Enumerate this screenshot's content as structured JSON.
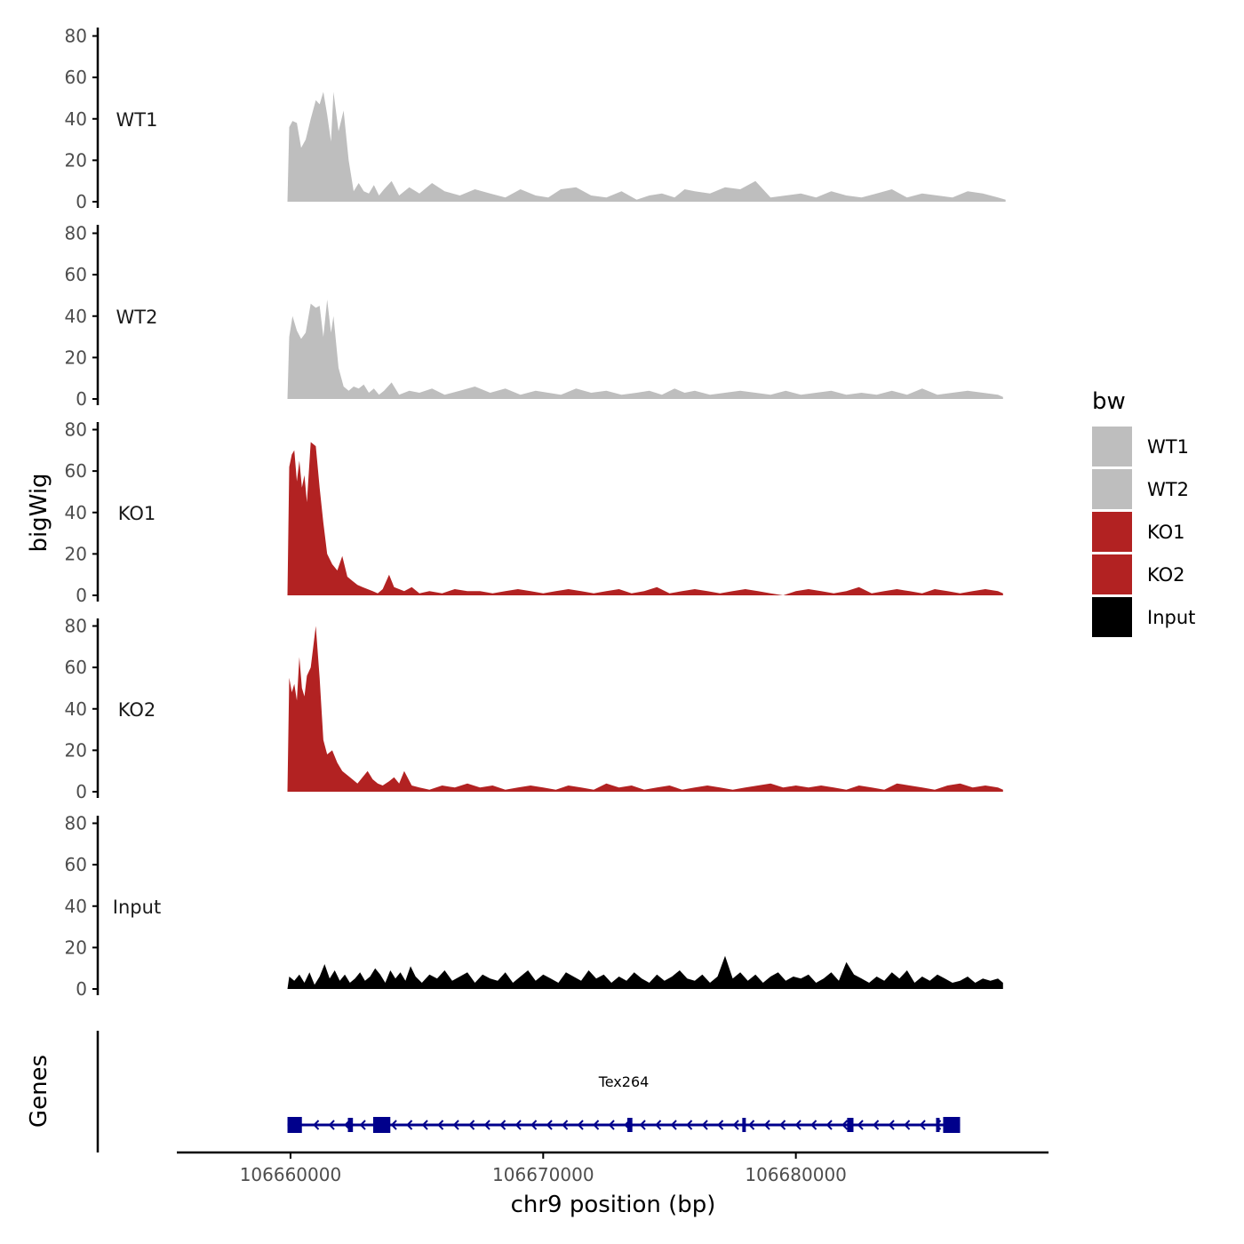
{
  "chart_data": {
    "type": "area",
    "ylabel": "bigWig",
    "xlabel": "chr9 position (bp)",
    "xlim": [
      106655500,
      106690000
    ],
    "ylim": [
      0,
      80
    ],
    "y_ticks": [
      0,
      20,
      40,
      60,
      80
    ],
    "x_ticks": [
      106660000,
      106670000,
      106680000
    ],
    "x_tick_labels": [
      "106660000",
      "106670000",
      "106680000"
    ],
    "genes_label": "Genes",
    "legend": {
      "title": "bw",
      "position": "right",
      "entries": [
        {
          "label": "WT1",
          "color": "#bebebe"
        },
        {
          "label": "WT2",
          "color": "#bebebe"
        },
        {
          "label": "KO1",
          "color": "#b22222"
        },
        {
          "label": "KO2",
          "color": "#b22222"
        },
        {
          "label": "Input",
          "color": "#000000"
        }
      ]
    },
    "tracks": [
      {
        "name": "WT1",
        "color": "#bebebe",
        "x": [
          106659880,
          106659950,
          106660080,
          106660250,
          106660420,
          106660600,
          106660800,
          106661000,
          106661150,
          106661300,
          106661450,
          106661600,
          106661700,
          106661900,
          106662100,
          106662300,
          106662500,
          106662700,
          106662900,
          106663100,
          106663300,
          106663500,
          106663700,
          106664000,
          106664300,
          106664700,
          106665100,
          106665600,
          106666100,
          106666700,
          106667300,
          106667900,
          106668500,
          106669100,
          106669700,
          106670200,
          106670700,
          106671300,
          106671900,
          106672500,
          106673100,
          106673700,
          106674200,
          106674700,
          106675200,
          106675600,
          106676000,
          106676600,
          106677200,
          106677800,
          106678400,
          106679000,
          106679600,
          106680200,
          106680800,
          106681400,
          106682000,
          106682600,
          106683200,
          106683800,
          106684400,
          106685000,
          106685600,
          106686200,
          106686800,
          106687400,
          106688000,
          106688300
        ],
        "values": [
          0,
          36,
          39,
          38,
          26,
          30,
          40,
          49,
          47,
          53,
          42,
          29,
          53,
          34,
          44,
          20,
          5,
          9,
          5,
          4,
          8,
          3,
          6,
          10,
          3,
          7,
          4,
          9,
          5,
          3,
          6,
          4,
          2,
          6,
          3,
          2,
          6,
          7,
          3,
          2,
          5,
          1,
          3,
          4,
          2,
          6,
          5,
          4,
          7,
          6,
          10,
          2,
          3,
          4,
          2,
          5,
          3,
          2,
          4,
          6,
          2,
          4,
          3,
          2,
          5,
          4,
          2,
          1
        ]
      },
      {
        "name": "WT2",
        "color": "#bebebe",
        "x": [
          106659880,
          106659950,
          106660080,
          106660250,
          106660420,
          106660600,
          106660800,
          106661000,
          106661150,
          106661300,
          106661450,
          106661600,
          106661700,
          106661900,
          106662100,
          106662300,
          106662500,
          106662700,
          106662900,
          106663100,
          106663300,
          106663500,
          106663700,
          106664000,
          106664300,
          106664700,
          106665100,
          106665600,
          106666100,
          106666700,
          106667300,
          106667900,
          106668500,
          106669100,
          106669700,
          106670200,
          106670700,
          106671300,
          106671900,
          106672500,
          106673100,
          106673700,
          106674200,
          106674700,
          106675200,
          106675600,
          106676000,
          106676600,
          106677200,
          106677800,
          106678400,
          106679000,
          106679600,
          106680200,
          106680800,
          106681400,
          106682000,
          106682600,
          106683200,
          106683800,
          106684400,
          106685000,
          106685600,
          106686200,
          106686800,
          106687400,
          106688000,
          106688200
        ],
        "values": [
          0,
          30,
          40,
          33,
          29,
          32,
          46,
          44,
          45,
          30,
          48,
          32,
          40,
          15,
          6,
          4,
          6,
          5,
          7,
          3,
          5,
          2,
          4,
          8,
          2,
          4,
          3,
          5,
          2,
          4,
          6,
          3,
          5,
          2,
          4,
          3,
          2,
          5,
          3,
          4,
          2,
          3,
          4,
          2,
          5,
          3,
          4,
          2,
          3,
          4,
          3,
          2,
          4,
          2,
          3,
          4,
          2,
          3,
          2,
          4,
          2,
          5,
          2,
          3,
          4,
          3,
          2,
          1
        ]
      },
      {
        "name": "KO1",
        "color": "#b22222",
        "x": [
          106659880,
          106659950,
          106660050,
          106660150,
          106660250,
          106660350,
          106660450,
          106660550,
          106660650,
          106660800,
          106661000,
          106661150,
          106661300,
          106661450,
          106661650,
          106661850,
          106662050,
          106662250,
          106662450,
          106662650,
          106662850,
          106663050,
          106663250,
          106663450,
          106663650,
          106663900,
          106664100,
          106664300,
          106664500,
          106664800,
          106665100,
          106665500,
          106666000,
          106666500,
          106667000,
          106667500,
          106668000,
          106668500,
          106669000,
          106669500,
          106670000,
          106670500,
          106671000,
          106671500,
          106672000,
          106672500,
          106673000,
          106673500,
          106674000,
          106674500,
          106675000,
          106675500,
          106676000,
          106676500,
          106677000,
          106677500,
          106678000,
          106678500,
          106679000,
          106679500,
          106680000,
          106680500,
          106681000,
          106681500,
          106682000,
          106682500,
          106683000,
          106683500,
          106684000,
          106684500,
          106685000,
          106685500,
          106686000,
          106686500,
          106687000,
          106687500,
          106688000,
          106688200
        ],
        "values": [
          0,
          62,
          68,
          70,
          55,
          65,
          52,
          58,
          45,
          74,
          72,
          52,
          35,
          20,
          15,
          12,
          19,
          9,
          7,
          5,
          4,
          3,
          2,
          1,
          3,
          10,
          4,
          3,
          2,
          4,
          1,
          2,
          1,
          3,
          2,
          2,
          1,
          2,
          3,
          2,
          1,
          2,
          3,
          2,
          1,
          2,
          3,
          1,
          2,
          4,
          1,
          2,
          3,
          2,
          1,
          2,
          3,
          2,
          1,
          0,
          2,
          3,
          2,
          1,
          2,
          4,
          1,
          2,
          3,
          2,
          1,
          3,
          2,
          1,
          2,
          3,
          2,
          1
        ]
      },
      {
        "name": "KO2",
        "color": "#b22222",
        "x": [
          106659880,
          106659950,
          106660050,
          106660150,
          106660250,
          106660350,
          106660450,
          106660550,
          106660650,
          106660800,
          106661000,
          106661150,
          106661300,
          106661450,
          106661650,
          106661850,
          106662050,
          106662250,
          106662450,
          106662650,
          106662850,
          106663050,
          106663250,
          106663450,
          106663650,
          106663900,
          106664100,
          106664300,
          106664500,
          106664800,
          106665100,
          106665500,
          106666000,
          106666500,
          106667000,
          106667500,
          106668000,
          106668500,
          106669000,
          106669500,
          106670000,
          106670500,
          106671000,
          106671500,
          106672000,
          106672500,
          106673000,
          106673500,
          106674000,
          106674500,
          106675000,
          106675500,
          106676000,
          106676500,
          106677000,
          106677500,
          106678000,
          106678500,
          106679000,
          106679500,
          106680000,
          106680500,
          106681000,
          106681500,
          106682000,
          106682500,
          106683000,
          106683500,
          106684000,
          106684500,
          106685000,
          106685500,
          106686000,
          106686500,
          106687000,
          106687500,
          106688000,
          106688200
        ],
        "values": [
          0,
          55,
          48,
          52,
          44,
          65,
          50,
          46,
          56,
          60,
          80,
          55,
          25,
          18,
          20,
          14,
          10,
          8,
          6,
          4,
          7,
          10,
          6,
          4,
          3,
          5,
          7,
          4,
          10,
          3,
          2,
          1,
          3,
          2,
          4,
          2,
          3,
          1,
          2,
          3,
          2,
          1,
          3,
          2,
          1,
          4,
          2,
          3,
          1,
          2,
          3,
          1,
          2,
          3,
          2,
          1,
          2,
          3,
          4,
          2,
          3,
          2,
          3,
          2,
          1,
          3,
          2,
          1,
          4,
          3,
          2,
          1,
          3,
          4,
          2,
          3,
          2,
          1
        ]
      },
      {
        "name": "Input",
        "color": "#000000",
        "x": [
          106659880,
          106659950,
          106660150,
          106660350,
          106660550,
          106660750,
          106660950,
          106661150,
          106661350,
          106661550,
          106661750,
          106661950,
          106662150,
          106662350,
          106662550,
          106662750,
          106662950,
          106663150,
          106663350,
          106663550,
          106663750,
          106663950,
          106664150,
          106664350,
          106664550,
          106664750,
          106664950,
          106665200,
          106665500,
          106665800,
          106666100,
          106666400,
          106666700,
          106667000,
          106667300,
          106667600,
          106667900,
          106668200,
          106668500,
          106668800,
          106669100,
          106669400,
          106669700,
          106670000,
          106670300,
          106670600,
          106670900,
          106671200,
          106671500,
          106671800,
          106672100,
          106672400,
          106672700,
          106673000,
          106673300,
          106673600,
          106673900,
          106674200,
          106674500,
          106674800,
          106675100,
          106675400,
          106675700,
          106676000,
          106676300,
          106676600,
          106676900,
          106677200,
          106677500,
          106677800,
          106678100,
          106678400,
          106678700,
          106679000,
          106679300,
          106679600,
          106679900,
          106680200,
          106680500,
          106680800,
          106681100,
          106681400,
          106681700,
          106682000,
          106682300,
          106682600,
          106682900,
          106683200,
          106683500,
          106683800,
          106684100,
          106684400,
          106684700,
          106685000,
          106685300,
          106685600,
          106685900,
          106686200,
          106686500,
          106686800,
          106687100,
          106687400,
          106687700,
          106688000,
          106688200
        ],
        "values": [
          0,
          6,
          4,
          7,
          3,
          8,
          2,
          6,
          12,
          5,
          9,
          4,
          7,
          3,
          5,
          8,
          4,
          6,
          10,
          7,
          3,
          9,
          5,
          8,
          4,
          11,
          6,
          3,
          7,
          5,
          9,
          4,
          6,
          8,
          3,
          7,
          5,
          4,
          8,
          3,
          6,
          9,
          4,
          7,
          5,
          3,
          8,
          6,
          4,
          9,
          5,
          7,
          3,
          6,
          4,
          8,
          5,
          3,
          7,
          4,
          6,
          9,
          5,
          4,
          7,
          3,
          6,
          16,
          5,
          8,
          4,
          7,
          3,
          6,
          8,
          4,
          6,
          5,
          7,
          3,
          5,
          8,
          4,
          13,
          7,
          5,
          3,
          6,
          4,
          8,
          5,
          9,
          3,
          6,
          4,
          7,
          5,
          3,
          4,
          6,
          3,
          5,
          4,
          5,
          3
        ]
      }
    ],
    "genes": [
      {
        "name": "Tex264",
        "start": 106659880,
        "end": 106686500,
        "strand": "-",
        "color": "#00008b",
        "exons": [
          {
            "start": 106659880,
            "end": 106660450
          },
          {
            "start": 106662270,
            "end": 106662470
          },
          {
            "start": 106663270,
            "end": 106663950
          },
          {
            "start": 106673330,
            "end": 106673530
          },
          {
            "start": 106677880,
            "end": 106677960
          },
          {
            "start": 106682030,
            "end": 106682280
          },
          {
            "start": 106685550,
            "end": 106685580
          },
          {
            "start": 106685830,
            "end": 106686500
          }
        ]
      }
    ]
  }
}
